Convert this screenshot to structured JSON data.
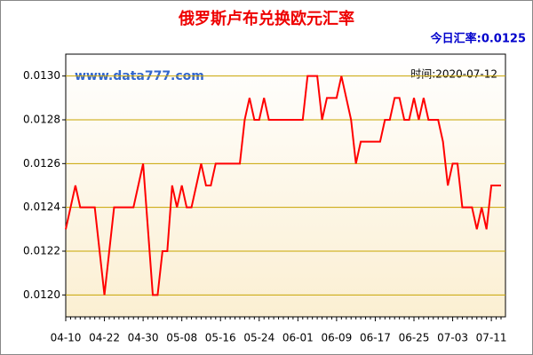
{
  "chart_data": {
    "type": "line",
    "title": "俄罗斯卢布兑换欧元汇率",
    "annotations": [
      "今日汇率:0.0125",
      "www.data777.com",
      "时间:2020-07-12"
    ],
    "categories": [
      "04-10",
      null,
      null,
      null,
      null,
      null,
      null,
      null,
      "04-22",
      null,
      null,
      null,
      null,
      null,
      null,
      null,
      "04-30",
      null,
      null,
      null,
      null,
      null,
      null,
      null,
      "05-08",
      null,
      null,
      null,
      null,
      null,
      null,
      null,
      "05-16",
      null,
      null,
      null,
      null,
      null,
      null,
      null,
      "05-24",
      null,
      null,
      null,
      null,
      null,
      null,
      null,
      "06-01",
      null,
      null,
      null,
      null,
      null,
      null,
      null,
      "06-09",
      null,
      null,
      null,
      null,
      null,
      null,
      null,
      "06-17",
      null,
      null,
      null,
      null,
      null,
      null,
      null,
      "06-25",
      null,
      null,
      null,
      null,
      null,
      null,
      null,
      "07-03",
      null,
      null,
      null,
      null,
      null,
      null,
      null,
      "07-11",
      null,
      null
    ],
    "values": [
      0.0123,
      0.0124,
      0.0125,
      0.0124,
      0.0124,
      0.0124,
      0.0124,
      0.0122,
      0.012,
      0.0122,
      0.0124,
      0.0124,
      0.0124,
      0.0124,
      0.0124,
      0.0125,
      0.0126,
      0.0123,
      0.012,
      0.012,
      0.0122,
      0.0122,
      0.0125,
      0.0124,
      0.0125,
      0.0124,
      0.0124,
      0.0125,
      0.0126,
      0.0125,
      0.0125,
      0.0126,
      0.0126,
      0.0126,
      0.0126,
      0.0126,
      0.0126,
      0.0128,
      0.0129,
      0.0128,
      0.0128,
      0.0129,
      0.0128,
      0.0128,
      0.0128,
      0.0128,
      0.0128,
      0.0128,
      0.0128,
      0.0128,
      0.013,
      0.013,
      0.013,
      0.0128,
      0.0129,
      0.0129,
      0.0129,
      0.013,
      0.0129,
      0.0128,
      0.0126,
      0.0127,
      0.0127,
      0.0127,
      0.0127,
      0.0127,
      0.0128,
      0.0128,
      0.0129,
      0.0129,
      0.0128,
      0.0128,
      0.0129,
      0.0128,
      0.0129,
      0.0128,
      0.0128,
      0.0128,
      0.0127,
      0.0125,
      0.0126,
      0.0126,
      0.0124,
      0.0124,
      0.0124,
      0.0123,
      0.0124,
      0.0123,
      0.0125,
      0.0125,
      0.0125
    ],
    "color": "#ff0000",
    "ylim": [
      0.0119,
      0.0131
    ],
    "yticks": [
      {
        "value": 0.012,
        "label": "0.0120"
      },
      {
        "value": 0.0122,
        "label": "0.0122"
      },
      {
        "value": 0.0124,
        "label": "0.0124"
      },
      {
        "value": 0.0126,
        "label": "0.0126"
      },
      {
        "value": 0.0128,
        "label": "0.0128"
      },
      {
        "value": 0.013,
        "label": "0.0130"
      }
    ],
    "grid": true
  }
}
